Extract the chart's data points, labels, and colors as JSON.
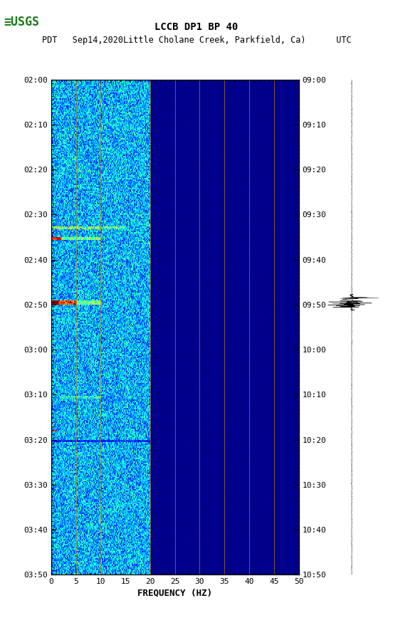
{
  "title1": "LCCB DP1 BP 40",
  "title2": "PDT   Sep14,2020Little Cholane Creek, Parkfield, Ca)      UTC",
  "xlabel": "FREQUENCY (HZ)",
  "freq_min": 0,
  "freq_max": 50,
  "time_labels_left": [
    "02:00",
    "02:10",
    "02:20",
    "02:30",
    "02:40",
    "02:50",
    "03:00",
    "03:10",
    "03:20",
    "03:30",
    "03:40",
    "03:50"
  ],
  "time_labels_right": [
    "09:00",
    "09:10",
    "09:20",
    "09:30",
    "09:40",
    "09:50",
    "10:00",
    "10:10",
    "10:20",
    "10:30",
    "10:40",
    "10:50"
  ],
  "freq_ticks": [
    0,
    5,
    10,
    15,
    20,
    25,
    30,
    35,
    40,
    45,
    50
  ],
  "vertical_grid_freqs": [
    5,
    10,
    15,
    20,
    25,
    30,
    35,
    40,
    45
  ],
  "n_time": 360,
  "n_freq": 500,
  "background_color": "#ffffff",
  "spectrogram_cmap": "jet",
  "fig_width": 5.52,
  "fig_height": 8.92
}
